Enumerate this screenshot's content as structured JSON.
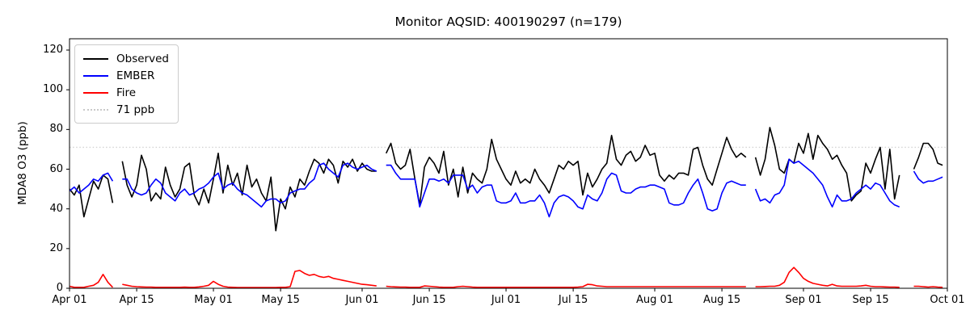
{
  "title": "Monitor AQSID: 400190297 (n=179)",
  "chart_data": {
    "type": "line",
    "title": "Monitor AQSID: 400190297 (n=179)",
    "xlabel": "",
    "ylabel": "MDA8 O3 (ppb)",
    "ylim": [
      0,
      126
    ],
    "yticks": [
      0,
      20,
      40,
      60,
      80,
      100,
      120
    ],
    "x_tick_labels": [
      "Apr 01",
      "Apr 15",
      "May 01",
      "May 15",
      "Jun 01",
      "Jun 15",
      "Jul 01",
      "Jul 15",
      "Aug 01",
      "Aug 15",
      "Sep 01",
      "Sep 15",
      "Oct 01"
    ],
    "x_tick_days": [
      0,
      14,
      30,
      44,
      61,
      75,
      91,
      105,
      122,
      136,
      153,
      167,
      183
    ],
    "x_total_days": 183,
    "x_start": "Apr 01",
    "x_end": "Oct 01",
    "grid": false,
    "legend_position": "upper left",
    "threshold": {
      "value": 71,
      "label": "71 ppb",
      "color": "#d3d3d3",
      "style": "dotted"
    },
    "legend": [
      {
        "label": "Observed",
        "color": "#000000",
        "style": "solid"
      },
      {
        "label": "EMBER",
        "color": "#0000ff",
        "style": "solid"
      },
      {
        "label": "Fire",
        "color": "#ff0000",
        "style": "solid"
      },
      {
        "label": "71 ppb",
        "color": "#c9c9c9",
        "style": "dotted"
      }
    ],
    "series": [
      {
        "name": "Observed",
        "color": "#000000",
        "values": [
          50,
          47,
          52,
          36,
          45,
          54,
          50,
          57,
          55,
          43,
          null,
          64,
          52,
          46,
          52,
          67,
          60,
          44,
          48,
          45,
          61,
          52,
          46,
          50,
          61,
          63,
          47,
          42,
          50,
          43,
          55,
          68,
          48,
          62,
          52,
          58,
          47,
          62,
          51,
          55,
          48,
          44,
          56,
          29,
          45,
          40,
          51,
          46,
          55,
          52,
          59,
          65,
          63,
          58,
          65,
          62,
          53,
          64,
          61,
          65,
          59,
          63,
          60,
          59,
          59,
          null,
          68,
          73,
          63,
          60,
          62,
          70,
          55,
          42,
          61,
          66,
          63,
          58,
          69,
          52,
          60,
          46,
          61,
          48,
          58,
          55,
          53,
          60,
          75,
          65,
          60,
          55,
          52,
          59,
          53,
          55,
          53,
          60,
          55,
          52,
          48,
          55,
          62,
          60,
          64,
          62,
          64,
          47,
          58,
          51,
          55,
          60,
          63,
          77,
          65,
          62,
          67,
          69,
          64,
          66,
          72,
          67,
          68,
          57,
          54,
          57,
          55,
          58,
          58,
          57,
          70,
          71,
          62,
          55,
          52,
          60,
          68,
          76,
          70,
          66,
          68,
          66,
          null,
          66,
          57,
          65,
          81,
          72,
          60,
          58,
          65,
          63,
          73,
          68,
          78,
          65,
          77,
          73,
          70,
          65,
          67,
          62,
          58,
          44,
          47,
          49,
          63,
          58,
          65,
          71,
          50,
          70,
          45,
          57,
          null,
          null,
          60,
          66,
          73,
          73,
          70,
          63,
          62
        ]
      },
      {
        "name": "EMBER",
        "color": "#0000ff",
        "values": [
          49,
          51,
          48,
          50,
          52,
          55,
          54,
          57,
          58,
          54,
          null,
          55,
          55,
          50,
          48,
          47,
          48,
          52,
          55,
          53,
          48,
          46,
          44,
          48,
          50,
          47,
          48,
          50,
          51,
          53,
          56,
          58,
          50,
          52,
          53,
          50,
          48,
          47,
          45,
          43,
          41,
          44,
          45,
          45,
          43,
          44,
          48,
          49,
          50,
          50,
          53,
          55,
          62,
          63,
          60,
          58,
          56,
          62,
          63,
          61,
          60,
          61,
          62,
          60,
          59,
          null,
          62,
          62,
          58,
          55,
          55,
          55,
          55,
          41,
          48,
          55,
          55,
          54,
          55,
          53,
          57,
          57,
          57,
          50,
          52,
          48,
          51,
          52,
          52,
          44,
          43,
          43,
          44,
          48,
          43,
          43,
          44,
          44,
          47,
          43,
          36,
          43,
          46,
          47,
          46,
          44,
          41,
          40,
          47,
          45,
          44,
          48,
          55,
          58,
          57,
          49,
          48,
          48,
          50,
          51,
          51,
          52,
          52,
          51,
          50,
          43,
          42,
          42,
          43,
          48,
          52,
          55,
          48,
          40,
          39,
          40,
          48,
          53,
          54,
          53,
          52,
          52,
          null,
          50,
          44,
          45,
          43,
          47,
          48,
          52,
          65,
          63,
          64,
          62,
          60,
          58,
          55,
          52,
          46,
          41,
          47,
          44,
          44,
          45,
          48,
          50,
          52,
          50,
          53,
          52,
          48,
          44,
          42,
          41,
          null,
          null,
          59,
          55,
          53,
          54,
          54,
          55,
          56
        ]
      },
      {
        "name": "Fire",
        "color": "#ff0000",
        "values": [
          1,
          0.5,
          0.5,
          0.5,
          1,
          1.5,
          3,
          7,
          3,
          0.5,
          null,
          2,
          1.5,
          1,
          0.8,
          0.7,
          0.6,
          0.6,
          0.5,
          0.5,
          0.5,
          0.5,
          0.5,
          0.5,
          0.6,
          0.5,
          0.5,
          0.7,
          1,
          1.5,
          3.5,
          2,
          1,
          0.6,
          0.5,
          0.4,
          0.4,
          0.4,
          0.4,
          0.4,
          0.4,
          0.4,
          0.4,
          0.4,
          0.5,
          0.5,
          0.8,
          8.5,
          9,
          7.5,
          6.5,
          7,
          6,
          5.5,
          6,
          5,
          4.5,
          4,
          3.5,
          3,
          2.5,
          2,
          1.8,
          1.5,
          1.2,
          null,
          1,
          0.8,
          0.7,
          0.6,
          0.6,
          0.5,
          0.5,
          0.5,
          1.2,
          1,
          0.8,
          0.6,
          0.5,
          0.5,
          0.5,
          0.8,
          1,
          0.8,
          0.6,
          0.5,
          0.5,
          0.5,
          0.5,
          0.5,
          0.5,
          0.5,
          0.5,
          0.5,
          0.5,
          0.5,
          0.5,
          0.5,
          0.5,
          0.5,
          0.5,
          0.5,
          0.5,
          0.5,
          0.5,
          0.5,
          0.6,
          0.8,
          2,
          1.8,
          1.2,
          1,
          0.8,
          0.8,
          0.8,
          0.8,
          0.8,
          0.8,
          0.8,
          0.8,
          0.8,
          0.8,
          0.8,
          0.8,
          0.8,
          0.8,
          0.8,
          0.8,
          0.8,
          0.8,
          0.8,
          0.8,
          0.8,
          0.8,
          0.8,
          0.8,
          0.8,
          0.8,
          0.8,
          0.8,
          0.8,
          0.8,
          null,
          0.8,
          0.8,
          0.9,
          1,
          1,
          1.5,
          3,
          8,
          10.5,
          8,
          5,
          3.5,
          2.5,
          2,
          1.5,
          1.2,
          2,
          1.2,
          1,
          1,
          1,
          1,
          1.2,
          1.5,
          1,
          0.8,
          0.8,
          0.7,
          0.6,
          0.6,
          0.5,
          null,
          null,
          1,
          1,
          0.8,
          0.6,
          0.8,
          0.6,
          0.5
        ]
      }
    ]
  }
}
